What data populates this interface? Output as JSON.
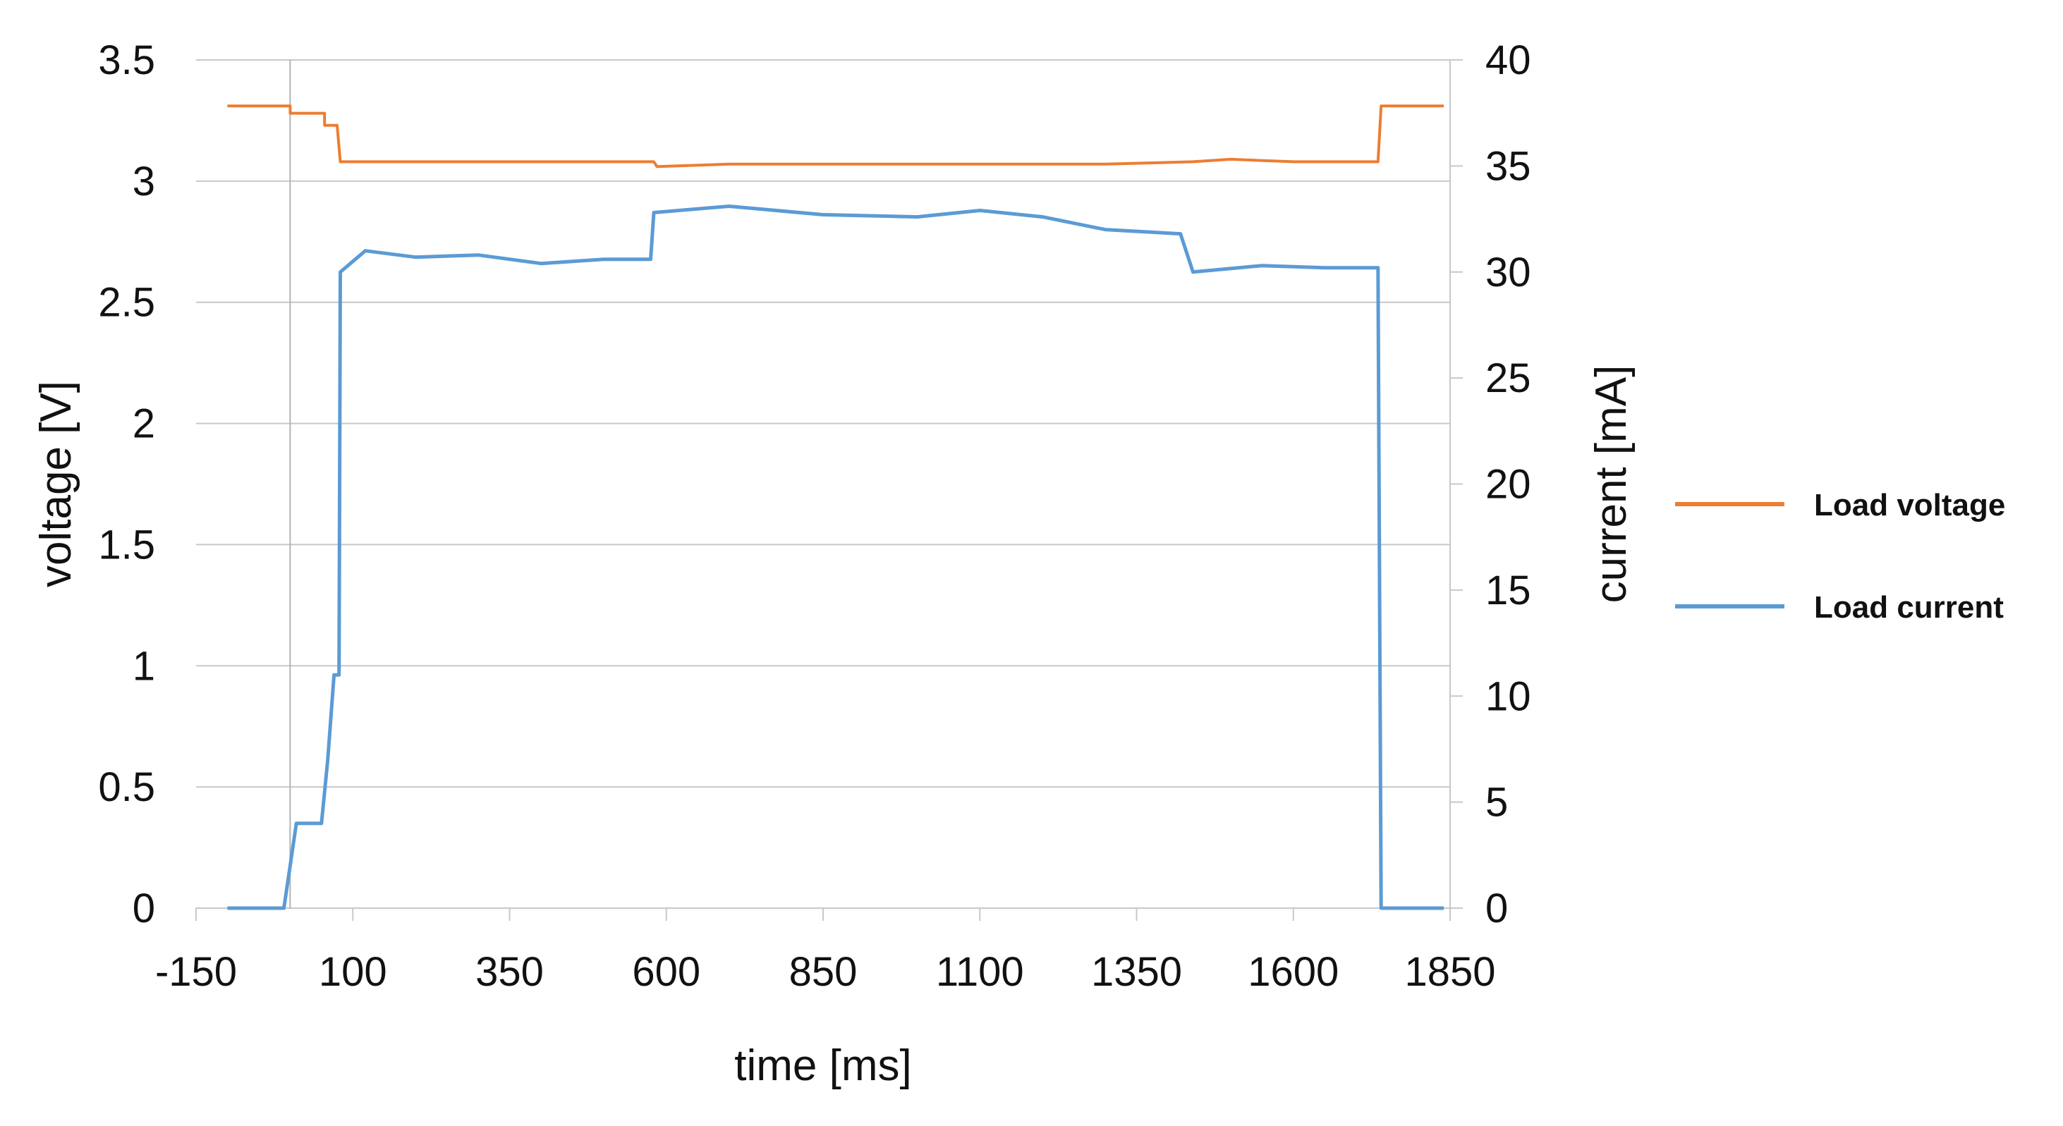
{
  "chart_data": {
    "type": "line",
    "title": "",
    "xlabel": "time [ms]",
    "ylabel_left": "voltage [V]",
    "ylabel_right": "current [mA]",
    "xlim": [
      -150,
      1850
    ],
    "ylim_left": [
      0,
      3.5
    ],
    "ylim_right": [
      0,
      40
    ],
    "x_ticks": [
      "-150",
      "100",
      "350",
      "600",
      "850",
      "1100",
      "1350",
      "1600",
      "1850"
    ],
    "y_left_ticks": [
      "0",
      "0.5",
      "1",
      "1.5",
      "2",
      "2.5",
      "3",
      "3.5"
    ],
    "y_right_ticks": [
      "0",
      "5",
      "10",
      "15",
      "20",
      "25",
      "30",
      "35",
      "40"
    ],
    "vertical_reference_x": 0,
    "grid": "horizontal",
    "legend_position": "right",
    "series": [
      {
        "name": "Load voltage",
        "axis": "left",
        "color": "#ED7D31",
        "points": [
          [
            -100,
            3.31
          ],
          [
            0,
            3.31
          ],
          [
            0,
            3.28
          ],
          [
            55,
            3.28
          ],
          [
            55,
            3.23
          ],
          [
            75,
            3.23
          ],
          [
            80,
            3.08
          ],
          [
            300,
            3.08
          ],
          [
            580,
            3.08
          ],
          [
            585,
            3.06
          ],
          [
            700,
            3.07
          ],
          [
            1000,
            3.07
          ],
          [
            1300,
            3.07
          ],
          [
            1440,
            3.08
          ],
          [
            1500,
            3.09
          ],
          [
            1600,
            3.08
          ],
          [
            1735,
            3.08
          ],
          [
            1740,
            3.31
          ],
          [
            1840,
            3.31
          ]
        ]
      },
      {
        "name": "Load current",
        "axis": "right",
        "color": "#5B9BD5",
        "points": [
          [
            -100,
            0
          ],
          [
            -10,
            0
          ],
          [
            0,
            2
          ],
          [
            10,
            4
          ],
          [
            50,
            4
          ],
          [
            60,
            7
          ],
          [
            70,
            11
          ],
          [
            78,
            11
          ],
          [
            80,
            30
          ],
          [
            120,
            31
          ],
          [
            200,
            30.7
          ],
          [
            300,
            30.8
          ],
          [
            400,
            30.4
          ],
          [
            500,
            30.6
          ],
          [
            575,
            30.6
          ],
          [
            580,
            32.8
          ],
          [
            700,
            33.1
          ],
          [
            850,
            32.7
          ],
          [
            1000,
            32.6
          ],
          [
            1100,
            32.9
          ],
          [
            1200,
            32.6
          ],
          [
            1300,
            32.0
          ],
          [
            1420,
            31.8
          ],
          [
            1440,
            30.0
          ],
          [
            1550,
            30.3
          ],
          [
            1650,
            30.2
          ],
          [
            1735,
            30.2
          ],
          [
            1740,
            0
          ],
          [
            1840,
            0
          ]
        ]
      }
    ]
  }
}
